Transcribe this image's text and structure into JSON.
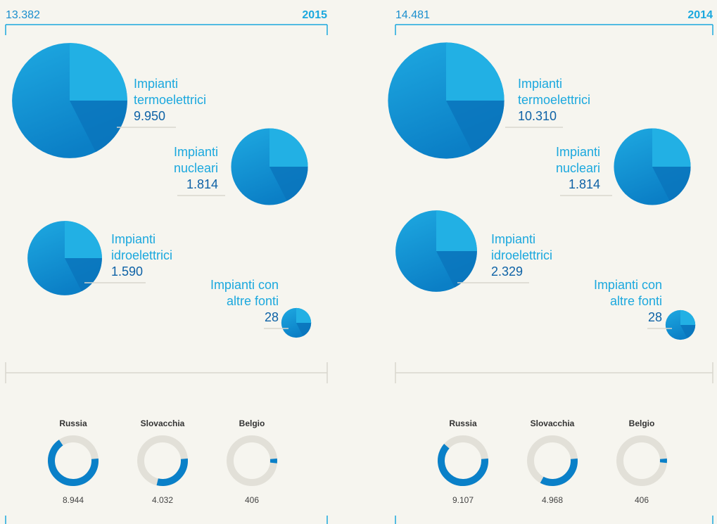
{
  "panels": [
    {
      "total": {
        "value": 13382,
        "label": "13.382"
      },
      "year": "2015",
      "plants": [
        {
          "label": [
            "Impianti",
            "termoelettrici"
          ],
          "value": 9950,
          "value_label": "9.950"
        },
        {
          "label": [
            "Impianti",
            "nucleari"
          ],
          "value": 1814,
          "value_label": "1.814"
        },
        {
          "label": [
            "Impianti",
            "idroelettrici"
          ],
          "value": 1590,
          "value_label": "1.590"
        },
        {
          "label": [
            "Impianti con",
            "altre fonti"
          ],
          "value": 28,
          "value_label": "28"
        }
      ],
      "countries": [
        {
          "name": "Russia",
          "value": 8944,
          "value_label": "8.944"
        },
        {
          "name": "Slovacchia",
          "value": 4032,
          "value_label": "4.032"
        },
        {
          "name": "Belgio",
          "value": 406,
          "value_label": "406"
        }
      ]
    },
    {
      "total": {
        "value": 14481,
        "label": "14.481"
      },
      "year": "2014",
      "plants": [
        {
          "label": [
            "Impianti",
            "termoelettrici"
          ],
          "value": 10310,
          "value_label": "10.310"
        },
        {
          "label": [
            "Impianti",
            "nucleari"
          ],
          "value": 1814,
          "value_label": "1.814"
        },
        {
          "label": [
            "Impianti",
            "idroelettrici"
          ],
          "value": 2329,
          "value_label": "2.329"
        },
        {
          "label": [
            "Impianti con",
            "altre fonti"
          ],
          "value": 28,
          "value_label": "28"
        }
      ],
      "countries": [
        {
          "name": "Russia",
          "value": 9107,
          "value_label": "9.107"
        },
        {
          "name": "Slovacchia",
          "value": 4968,
          "value_label": "4.968"
        },
        {
          "name": "Belgio",
          "value": 406,
          "value_label": "406"
        }
      ]
    }
  ]
}
